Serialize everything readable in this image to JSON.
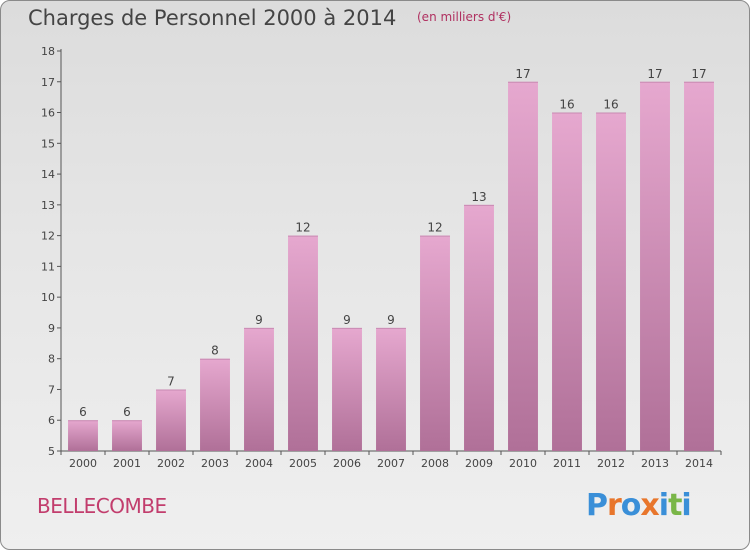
{
  "title": {
    "main": "Charges de Personnel 2000 à 2014",
    "unit": "(en milliers d'€)"
  },
  "place": "BELLECOMBE",
  "logo": {
    "text": "Proxiti",
    "colors": [
      "#3a8fd8",
      "#e8762c",
      "#3a8fd8",
      "#e8762c",
      "#3a8fd8",
      "#7ab648",
      "#3a8fd8"
    ]
  },
  "colors": {
    "bar_top": "#e6a8cf",
    "bar_bottom": "#b07098",
    "axis": "#555555"
  },
  "chart_data": {
    "type": "bar",
    "categories": [
      "2000",
      "2001",
      "2002",
      "2003",
      "2004",
      "2005",
      "2006",
      "2007",
      "2008",
      "2009",
      "2010",
      "2011",
      "2012",
      "2013",
      "2014"
    ],
    "values": [
      6,
      6,
      7,
      8,
      9,
      12,
      9,
      9,
      12,
      13,
      17,
      16,
      16,
      17,
      17
    ],
    "data_labels": [
      "6",
      "6",
      "7",
      "8",
      "9",
      "12",
      "9",
      "9",
      "12",
      "13",
      "17",
      "16",
      "16",
      "17",
      "17"
    ],
    "yticks": [
      5,
      6,
      7,
      8,
      9,
      10,
      11,
      12,
      13,
      14,
      15,
      16,
      17,
      18
    ],
    "ylim": [
      5,
      18
    ],
    "grid": false
  }
}
